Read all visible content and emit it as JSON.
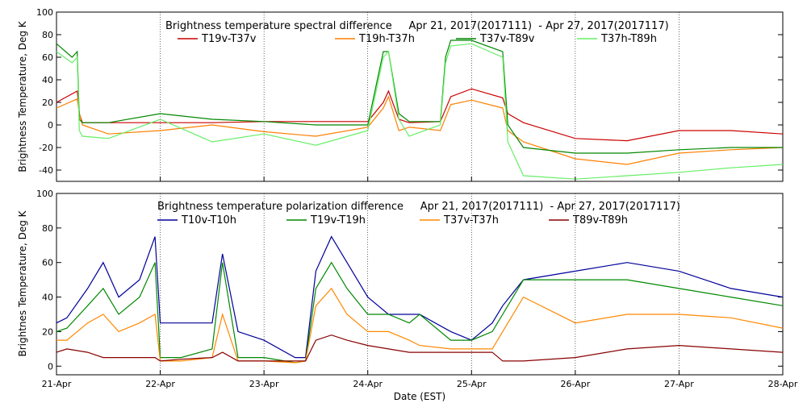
{
  "x_label": "Date (EST)",
  "x_ticks": [
    "21-Apr",
    "22-Apr",
    "23-Apr",
    "24-Apr",
    "25-Apr",
    "26-Apr",
    "27-Apr",
    "28-Apr"
  ],
  "colors": {
    "red": "#cc0000",
    "orange": "#ff7f00",
    "green": "#008800",
    "lightgreen": "#66ee66",
    "blue": "#000099",
    "green2": "#008800",
    "orange2": "#ff8800",
    "darkred": "#880000"
  },
  "chart_data": [
    {
      "type": "line",
      "title": "Brightness temperature spectral difference     Apr 21, 2017(2017111)  - Apr 27, 2017(2017117)",
      "ylabel": "Brightness Temperature, Deg K",
      "xlabel": "",
      "xlim": [
        0,
        7
      ],
      "ylim": [
        -50,
        100
      ],
      "yticks": [
        -40,
        -20,
        0,
        20,
        40,
        60,
        80,
        100
      ],
      "grid": true,
      "series": [
        {
          "name": "T19v-T37v",
          "color": "red",
          "x": [
            0,
            0.2,
            0.22,
            0.25,
            0.5,
            1,
            1.5,
            2,
            2.5,
            3,
            3.15,
            3.2,
            3.3,
            3.4,
            3.7,
            3.8,
            4,
            4.3,
            4.35,
            4.5,
            5,
            5.5,
            6,
            6.5,
            7
          ],
          "y": [
            20,
            30,
            10,
            2,
            2,
            2,
            2,
            3,
            3,
            3,
            20,
            30,
            5,
            2,
            3,
            25,
            32,
            24,
            10,
            2,
            -12,
            -14,
            -5,
            -5,
            -8
          ]
        },
        {
          "name": "T19h-T37h",
          "color": "orange",
          "x": [
            0,
            0.2,
            0.22,
            0.25,
            0.5,
            1,
            1.5,
            2,
            2.5,
            3,
            3.15,
            3.2,
            3.3,
            3.4,
            3.7,
            3.8,
            4,
            4.3,
            4.35,
            4.5,
            5,
            5.5,
            6,
            6.5,
            7
          ],
          "y": [
            15,
            23,
            10,
            0,
            -8,
            -5,
            0,
            -6,
            -10,
            -2,
            15,
            25,
            -5,
            -2,
            -5,
            18,
            22,
            15,
            -5,
            -15,
            -30,
            -35,
            -25,
            -22,
            -20
          ]
        },
        {
          "name": "T37v-T89v",
          "color": "green",
          "x": [
            0,
            0.15,
            0.2,
            0.22,
            0.25,
            0.5,
            1,
            1.5,
            2,
            2.5,
            3,
            3.15,
            3.2,
            3.3,
            3.4,
            3.7,
            3.75,
            3.8,
            4,
            4.3,
            4.35,
            4.5,
            5,
            5.5,
            6,
            6.5,
            7
          ],
          "y": [
            72,
            60,
            65,
            5,
            2,
            2,
            10,
            5,
            3,
            0,
            0,
            65,
            65,
            10,
            3,
            3,
            60,
            75,
            75,
            65,
            0,
            -20,
            -25,
            -25,
            -22,
            -20,
            -20
          ]
        },
        {
          "name": "T37h-T89h",
          "color": "lightgreen",
          "x": [
            0,
            0.15,
            0.2,
            0.22,
            0.25,
            0.5,
            1,
            1.5,
            2,
            2.5,
            3,
            3.15,
            3.2,
            3.3,
            3.4,
            3.7,
            3.75,
            3.8,
            4,
            4.3,
            4.35,
            4.5,
            5,
            5.5,
            6,
            6.5,
            7
          ],
          "y": [
            65,
            55,
            60,
            -5,
            -10,
            -12,
            5,
            -15,
            -8,
            -18,
            -5,
            60,
            65,
            5,
            -10,
            0,
            55,
            70,
            72,
            60,
            -15,
            -45,
            -48,
            -45,
            -42,
            -38,
            -35
          ]
        }
      ]
    },
    {
      "type": "line",
      "title": "Brightness temperature polarization difference     Apr 21, 2017(2017111)  - Apr 27, 2017(2017117)",
      "ylabel": "Brightnes Temperature, Deg K",
      "xlabel": "Date (EST)",
      "xlim": [
        0,
        7
      ],
      "ylim": [
        -5,
        100
      ],
      "yticks": [
        0,
        20,
        40,
        60,
        80,
        100
      ],
      "grid": true,
      "series": [
        {
          "name": "T10v-T10h",
          "color": "blue",
          "x": [
            0,
            0.1,
            0.3,
            0.45,
            0.6,
            0.8,
            0.95,
            1,
            1.2,
            1.5,
            1.6,
            1.75,
            2,
            2.3,
            2.4,
            2.5,
            2.65,
            2.8,
            3,
            3.2,
            3.4,
            3.5,
            3.8,
            4,
            4.2,
            4.3,
            4.5,
            5,
            5.5,
            6,
            6.5,
            7
          ],
          "y": [
            25,
            28,
            45,
            60,
            40,
            50,
            75,
            25,
            25,
            25,
            65,
            20,
            15,
            5,
            5,
            55,
            75,
            60,
            40,
            30,
            30,
            30,
            20,
            15,
            25,
            35,
            50,
            55,
            60,
            55,
            45,
            40
          ]
        },
        {
          "name": "T19v-T19h",
          "color": "green2",
          "x": [
            0,
            0.1,
            0.3,
            0.45,
            0.6,
            0.8,
            0.95,
            1,
            1.2,
            1.5,
            1.6,
            1.75,
            2,
            2.3,
            2.4,
            2.5,
            2.65,
            2.8,
            3,
            3.2,
            3.4,
            3.5,
            3.8,
            4,
            4.2,
            4.3,
            4.5,
            5,
            5.5,
            6,
            6.5,
            7
          ],
          "y": [
            20,
            22,
            35,
            45,
            30,
            40,
            60,
            5,
            5,
            10,
            60,
            5,
            5,
            2,
            3,
            45,
            60,
            45,
            30,
            30,
            25,
            30,
            15,
            15,
            20,
            30,
            50,
            50,
            50,
            45,
            40,
            35
          ]
        },
        {
          "name": "T37v-T37h",
          "color": "orange2",
          "x": [
            0,
            0.1,
            0.3,
            0.45,
            0.6,
            0.8,
            0.95,
            1,
            1.2,
            1.5,
            1.6,
            1.75,
            2,
            2.3,
            2.4,
            2.5,
            2.65,
            2.8,
            3,
            3.2,
            3.4,
            3.5,
            3.8,
            4,
            4.2,
            4.3,
            4.5,
            5,
            5.5,
            6,
            6.5,
            7
          ],
          "y": [
            15,
            15,
            25,
            30,
            20,
            25,
            30,
            3,
            3,
            5,
            30,
            3,
            3,
            2,
            3,
            35,
            45,
            30,
            20,
            20,
            15,
            12,
            10,
            10,
            10,
            20,
            40,
            25,
            30,
            30,
            28,
            22
          ]
        },
        {
          "name": "T89v-T89h",
          "color": "darkred",
          "x": [
            0,
            0.1,
            0.3,
            0.45,
            0.6,
            0.8,
            0.95,
            1,
            1.2,
            1.5,
            1.6,
            1.75,
            2,
            2.3,
            2.4,
            2.5,
            2.65,
            2.8,
            3,
            3.2,
            3.4,
            3.5,
            3.8,
            4,
            4.2,
            4.3,
            4.5,
            5,
            5.5,
            6,
            6.5,
            7
          ],
          "y": [
            8,
            10,
            8,
            5,
            5,
            5,
            5,
            3,
            4,
            5,
            8,
            3,
            3,
            3,
            3,
            15,
            18,
            15,
            12,
            10,
            8,
            8,
            8,
            8,
            8,
            3,
            3,
            5,
            10,
            12,
            10,
            8
          ]
        }
      ]
    }
  ]
}
